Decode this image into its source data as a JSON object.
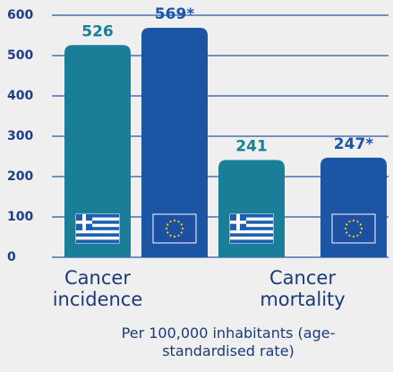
{
  "chart_data": {
    "type": "bar",
    "categories": [
      "Cancer incidence",
      "Cancer mortality"
    ],
    "series": [
      {
        "color": "#1a7e98",
        "values": [
          526,
          241
        ],
        "value_labels": [
          "526",
          "241"
        ]
      },
      {
        "color": "#1d55a5",
        "values": [
          569,
          247
        ],
        "value_labels": [
          "569*",
          "247*"
        ]
      }
    ],
    "x_label": "Per 100,000 inhabitants (age-standardised rate)",
    "ylim": [
      0,
      600
    ],
    "yticks": [
      0,
      100,
      200,
      300,
      400,
      500,
      600
    ],
    "grid": true,
    "grid_color": "#2a56a6"
  }
}
